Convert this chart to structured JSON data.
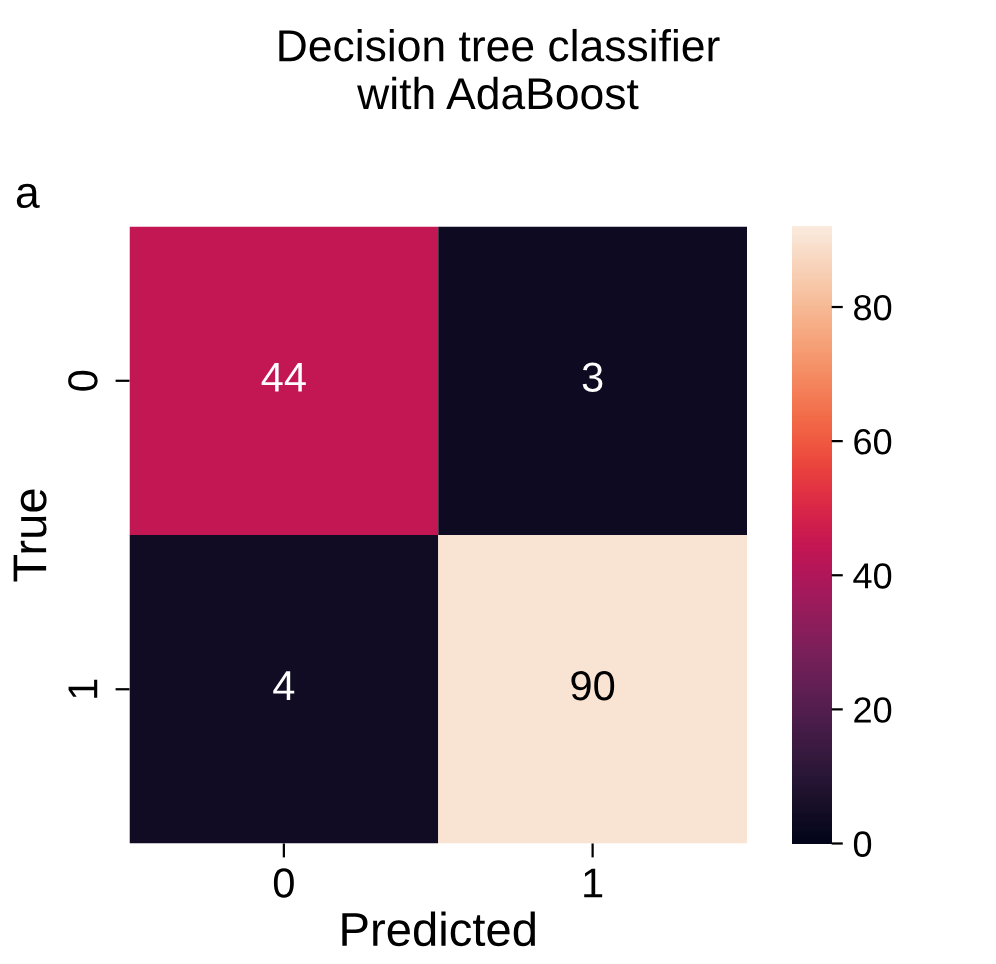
{
  "chart_data": {
    "type": "heatmap",
    "title": "Decision tree classifier\nwith AdaBoost",
    "annotations": [
      "a"
    ],
    "xlabel": "Predicted",
    "ylabel": "True",
    "categories": [
      "0",
      "1"
    ],
    "y_categories": [
      "0",
      "1"
    ],
    "cells": [
      [
        44,
        3
      ],
      [
        4,
        90
      ]
    ],
    "data_labels": true,
    "clim": [
      0,
      92
    ],
    "cticks": [
      0,
      20,
      40,
      60,
      80
    ]
  }
}
